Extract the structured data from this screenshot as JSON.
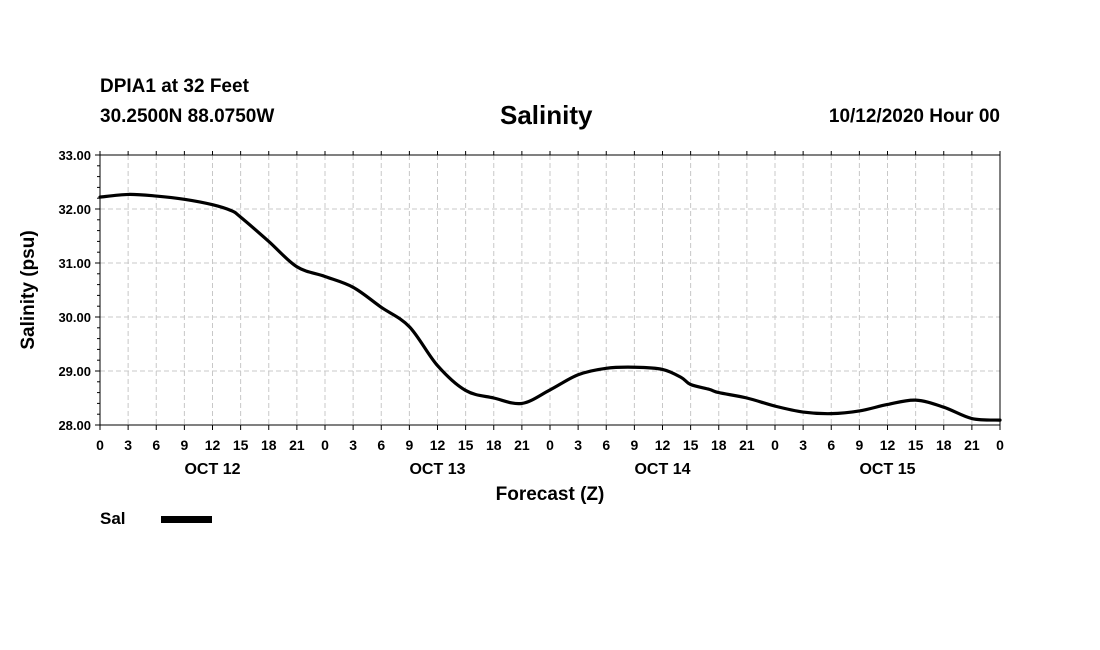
{
  "header": {
    "station": "DPIA1 at 32 Feet",
    "coords": "30.2500N 88.0750W",
    "title": "Salinity",
    "runtime": "10/12/2020 Hour 00"
  },
  "legend": {
    "label": "Sal"
  },
  "chart_data": {
    "type": "line",
    "title": "Salinity",
    "xlabel": "Forecast (Z)",
    "ylabel": "Salinity (psu)",
    "ylim": [
      28.0,
      33.0
    ],
    "xlim": [
      0,
      96
    ],
    "grid": true,
    "legend_placement": "bottom-left",
    "y_ticks": [
      "28.00",
      "29.00",
      "30.00",
      "31.00",
      "32.00",
      "33.00"
    ],
    "x_tick_labels": [
      "0",
      "3",
      "6",
      "9",
      "12",
      "15",
      "18",
      "21",
      "0",
      "3",
      "6",
      "9",
      "12",
      "15",
      "18",
      "21",
      "0",
      "3",
      "6",
      "9",
      "12",
      "15",
      "18",
      "21",
      "0",
      "3",
      "6",
      "9",
      "12",
      "15",
      "18",
      "21",
      "0"
    ],
    "day_labels": [
      {
        "label": "OCT 12",
        "hour": 12
      },
      {
        "label": "OCT 13",
        "hour": 36
      },
      {
        "label": "OCT 14",
        "hour": 60
      },
      {
        "label": "OCT 15",
        "hour": 84
      }
    ],
    "series": [
      {
        "name": "Sal",
        "color": "#000000",
        "x": [
          0,
          3,
          6,
          9,
          12,
          14,
          15,
          18,
          21,
          24,
          27,
          30,
          33,
          36,
          39,
          42,
          45,
          48,
          51,
          54,
          57,
          60,
          62,
          63,
          65,
          66,
          69,
          72,
          75,
          78,
          81,
          84,
          87,
          90,
          93,
          96
        ],
        "values": [
          32.22,
          32.27,
          32.24,
          32.18,
          32.08,
          31.97,
          31.85,
          31.4,
          30.93,
          30.75,
          30.55,
          30.18,
          29.82,
          29.1,
          28.64,
          28.5,
          28.4,
          28.65,
          28.93,
          29.05,
          29.07,
          29.03,
          28.88,
          28.75,
          28.66,
          28.6,
          28.5,
          28.35,
          28.24,
          28.21,
          28.26,
          28.38,
          28.46,
          28.33,
          28.12,
          28.09
        ]
      }
    ]
  }
}
